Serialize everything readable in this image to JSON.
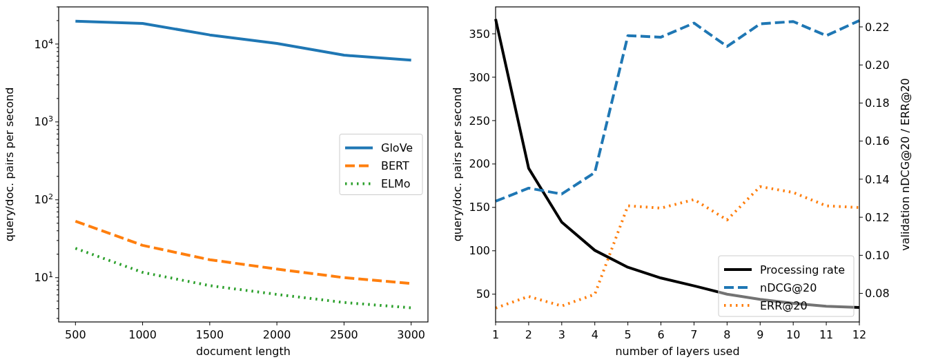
{
  "chart_data": [
    {
      "type": "line",
      "xlabel": "document length",
      "ylabel": "query/doc. pairs per second",
      "x": [
        500,
        1000,
        1500,
        2000,
        2500,
        3000
      ],
      "log": "y",
      "xlim": [
        375,
        3125
      ],
      "ylim": [
        2.7,
        30000
      ],
      "xticks": [
        500,
        1000,
        1500,
        2000,
        2500,
        3000
      ],
      "yticks": [
        {
          "value": 3,
          "label": null
        },
        {
          "value": 4,
          "label": null
        },
        {
          "value": 5,
          "label": null
        },
        {
          "value": 6,
          "label": null
        },
        {
          "value": 7,
          "label": null
        },
        {
          "value": 8,
          "label": null
        },
        {
          "value": 9,
          "label": null
        },
        {
          "value": 10,
          "label": "10$^{1}$"
        },
        {
          "value": 20,
          "label": null
        },
        {
          "value": 30,
          "label": null
        },
        {
          "value": 40,
          "label": null
        },
        {
          "value": 50,
          "label": null
        },
        {
          "value": 60,
          "label": null
        },
        {
          "value": 70,
          "label": null
        },
        {
          "value": 80,
          "label": null
        },
        {
          "value": 90,
          "label": null
        },
        {
          "value": 100,
          "label": "10$^{2}$"
        },
        {
          "value": 200,
          "label": null
        },
        {
          "value": 300,
          "label": null
        },
        {
          "value": 400,
          "label": null
        },
        {
          "value": 500,
          "label": null
        },
        {
          "value": 600,
          "label": null
        },
        {
          "value": 700,
          "label": null
        },
        {
          "value": 800,
          "label": null
        },
        {
          "value": 900,
          "label": null
        },
        {
          "value": 1000,
          "label": "10$^{3}$"
        },
        {
          "value": 2000,
          "label": null
        },
        {
          "value": 3000,
          "label": null
        },
        {
          "value": 4000,
          "label": null
        },
        {
          "value": 5000,
          "label": null
        },
        {
          "value": 6000,
          "label": null
        },
        {
          "value": 7000,
          "label": null
        },
        {
          "value": 8000,
          "label": null
        },
        {
          "value": 9000,
          "label": null
        },
        {
          "value": 10000,
          "label": "10$^{4}$"
        },
        {
          "value": 20000,
          "label": null
        },
        {
          "value": 30000,
          "label": null
        }
      ],
      "grid": false,
      "legend": "right",
      "series": [
        {
          "name": "GloVe",
          "color": "#1f77b4",
          "line_style": "solid",
          "values": [
            19700,
            18400,
            13100,
            10200,
            7200,
            6200
          ]
        },
        {
          "name": "BERT",
          "color": "#ff7f0e",
          "line_style": "dashed",
          "values": [
            53,
            26,
            17,
            12.9,
            10,
            8.4
          ]
        },
        {
          "name": "ELMo",
          "color": "#2ca02c",
          "line_style": "dotted",
          "values": [
            23.8,
            11.7,
            7.9,
            6.1,
            4.8,
            4.1
          ]
        }
      ]
    },
    {
      "type": "line",
      "xlabel": "number of layers used",
      "ylabel": "query/doc. pairs per second",
      "y2label": "validation nDCG@20 / ERR@20",
      "x": [
        1,
        2,
        3,
        4,
        5,
        6,
        7,
        8,
        9,
        10,
        11,
        12
      ],
      "xlim": [
        1,
        12
      ],
      "ylim": [
        18,
        381
      ],
      "y2lim": [
        0.065,
        0.2305
      ],
      "xticks": [
        1,
        2,
        3,
        4,
        5,
        6,
        7,
        8,
        9,
        10,
        11,
        12
      ],
      "yticks": [
        50,
        100,
        150,
        200,
        250,
        300,
        350
      ],
      "y2ticks": [
        0.08,
        {
          "value": 0.1,
          "label": "0.10"
        },
        0.12,
        0.14,
        0.16,
        0.18,
        {
          "value": 0.2,
          "label": "0.20"
        },
        0.22
      ],
      "grid": false,
      "legend": "bottom right",
      "series": [
        {
          "name": "Processing rate",
          "color": "#000000",
          "line_style": "solid",
          "values": [
            367,
            195,
            133,
            100.5,
            81,
            68.6,
            59.6,
            50,
            44,
            39.5,
            36,
            34.6
          ]
        },
        {
          "name": "nDCG@20",
          "color": "#1f77b4",
          "line_style": "dashed",
          "axis": "y2",
          "values": [
            0.1284,
            0.1353,
            0.1322,
            0.1435,
            0.2154,
            0.2146,
            0.222,
            0.2097,
            0.2216,
            0.2228,
            0.2154,
            0.2233
          ]
        },
        {
          "name": "ERR@20",
          "color": "#ff7f0e",
          "line_style": "dotted",
          "axis": "y2",
          "values": [
            0.0723,
            0.0784,
            0.0734,
            0.0795,
            0.126,
            0.1248,
            0.1293,
            0.1186,
            0.1361,
            0.133,
            0.126,
            0.1251
          ]
        }
      ]
    }
  ]
}
